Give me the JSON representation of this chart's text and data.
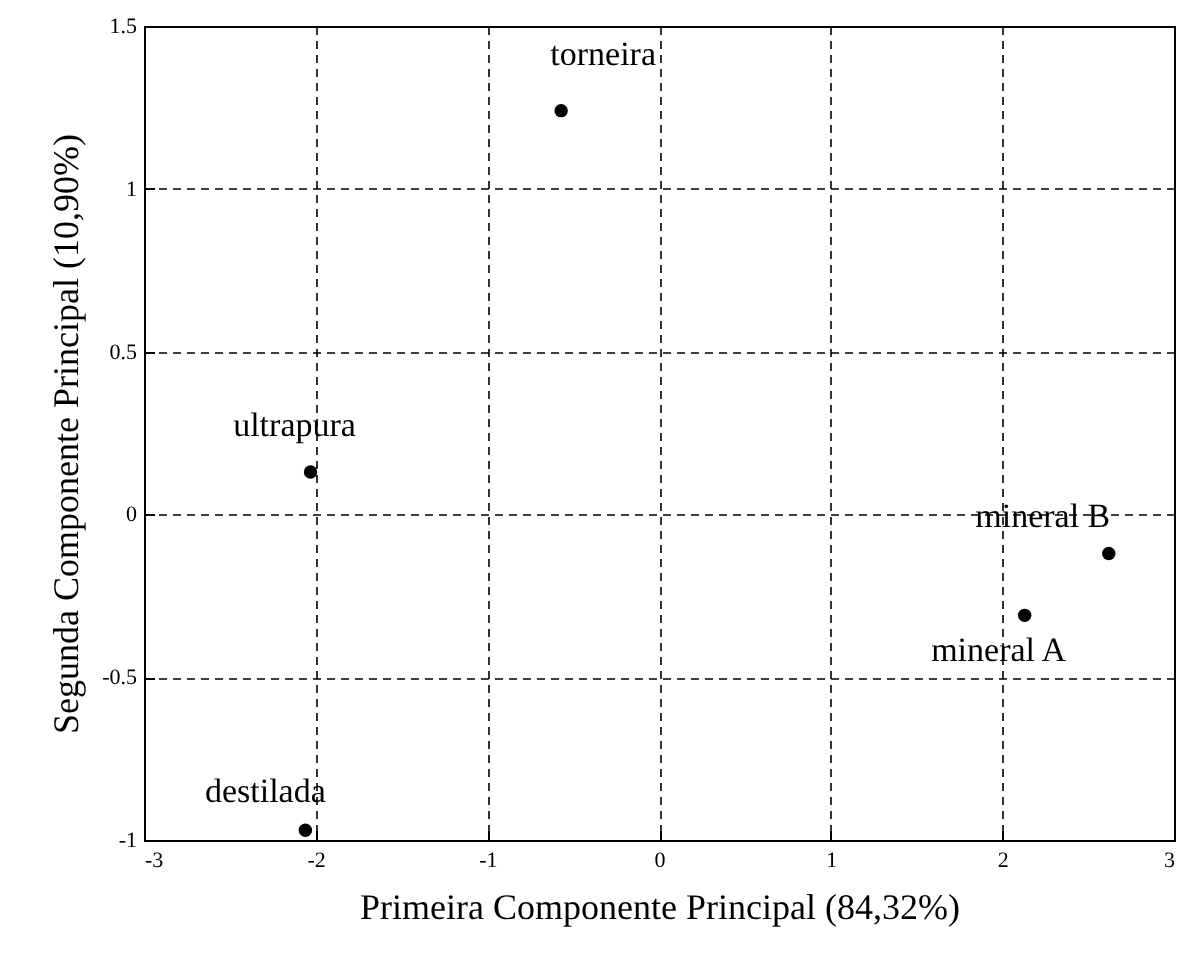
{
  "chart_data": {
    "type": "scatter",
    "xlabel": "Primeira Componente Principal (84,32%)",
    "ylabel": "Segunda Componente Principal (10,90%)",
    "x": [
      -0.57,
      -2.03,
      -2.06,
      2.13,
      2.62
    ],
    "series": [
      {
        "color": "#000000",
        "values": [
          1.24,
          0.13,
          -0.97,
          -0.31,
          -0.12
        ]
      }
    ],
    "xlim": [
      -3,
      3
    ],
    "xticks": [
      -3,
      -2,
      -1,
      0,
      1,
      2,
      3
    ],
    "ylim": [
      -1,
      1.5
    ],
    "yticks": [
      -1,
      -0.5,
      0,
      0.5,
      1,
      1.5
    ],
    "grid": true,
    "marker": "circle",
    "annotations": [
      {
        "text": "torneira",
        "x": -0.57,
        "y": 1.24
      },
      {
        "text": "ultrapura",
        "x": -2.03,
        "y": 0.13
      },
      {
        "text": "destilada",
        "x": -2.06,
        "y": -0.97
      },
      {
        "text": "mineral A",
        "x": 2.13,
        "y": -0.31
      },
      {
        "text": "mineral B",
        "x": 2.62,
        "y": -0.12
      }
    ]
  }
}
